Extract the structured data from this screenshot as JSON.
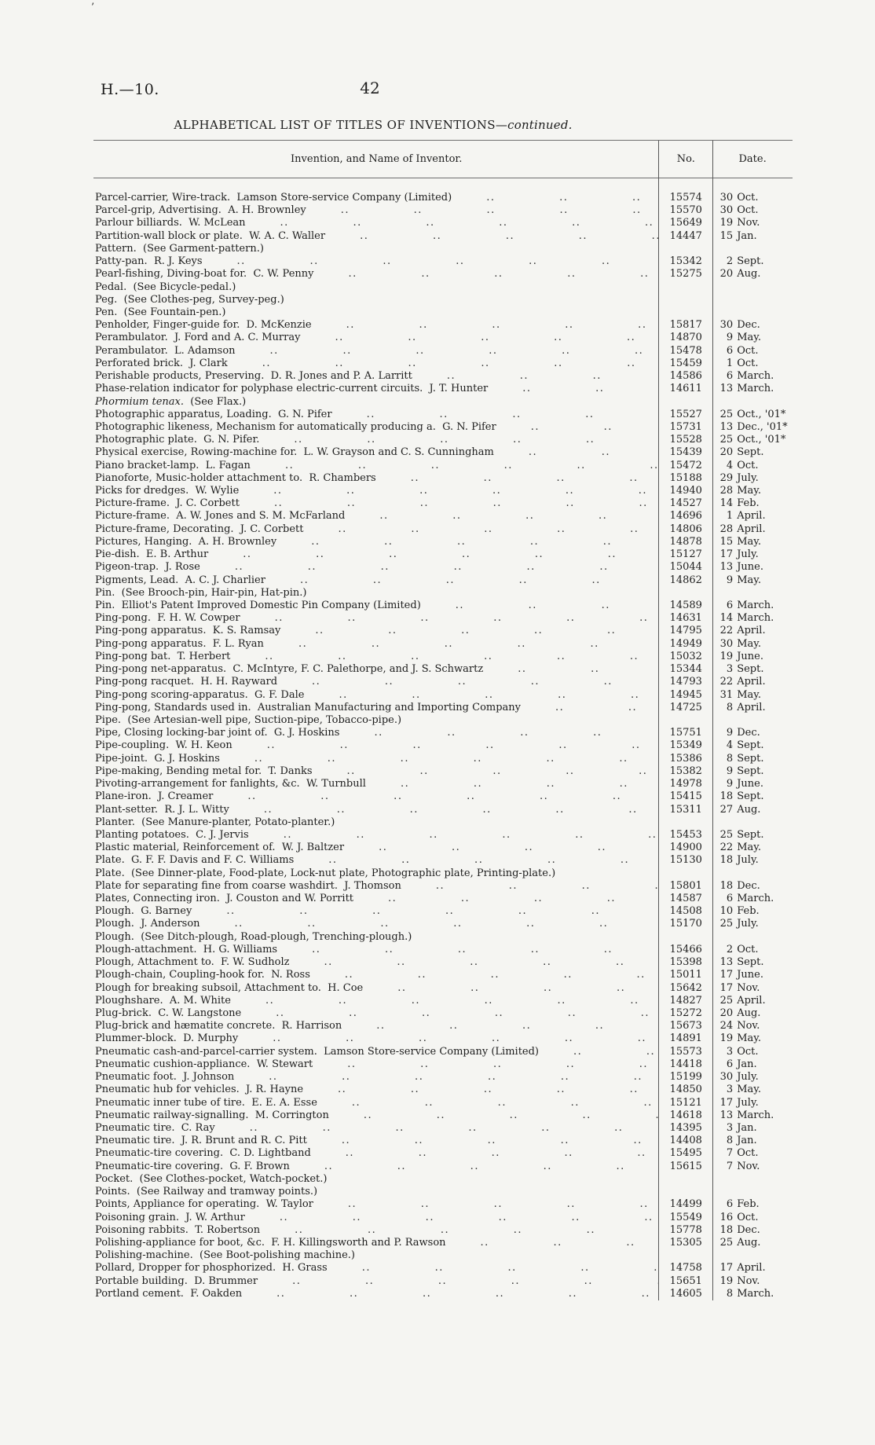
{
  "page": {
    "doc_ref": "H.—10.",
    "page_number": "42",
    "scan_mark": "’"
  },
  "title": {
    "main": "ALPHABETICAL LIST OF TITLES OF INVENTIONS",
    "suffix": "—continued."
  },
  "table": {
    "header": {
      "invention": "Invention, and Name of Inventor.",
      "no": "No.",
      "date": "Date."
    },
    "rows": [
      {
        "t": "Parcel-carrier, Wire-track.  Lamson Store-service Company (Limited)",
        "n": "15574",
        "d": "30 Oct."
      },
      {
        "t": "Parcel-grip, Advertising.  A. H. Brownley",
        "n": "15570",
        "d": "30 Oct."
      },
      {
        "t": "Parlour billiards.  W. McLean",
        "n": "15649",
        "d": "19 Nov."
      },
      {
        "t": "Partition-wall block or plate.  W. A. C. Waller",
        "n": "14447",
        "d": "15 Jan."
      },
      {
        "t": "Pattern.  (See Garment-pattern.)"
      },
      {
        "t": "Patty-pan.  R. J. Keys",
        "n": "15342",
        "d": "2 Sept."
      },
      {
        "t": "Pearl-fishing, Diving-boat for.  C. W. Penny",
        "n": "15275",
        "d": "20 Aug."
      },
      {
        "t": "Pedal.  (See Bicycle-pedal.)"
      },
      {
        "t": "Peg.  (See Clothes-peg, Survey-peg.)"
      },
      {
        "t": "Pen.  (See Fountain-pen.)"
      },
      {
        "t": "Penholder, Finger-guide for.  D. McKenzie",
        "n": "15817",
        "d": "30 Dec."
      },
      {
        "t": "Perambulator.  J. Ford and A. C. Murray",
        "n": "14870",
        "d": "9 May."
      },
      {
        "t": "Perambulator.  L. Adamson",
        "n": "15478",
        "d": "6 Oct."
      },
      {
        "t": "Perforated brick.  J. Clark",
        "n": "15459",
        "d": "1 Oct."
      },
      {
        "t": "Perishable products, Preserving.  D. R. Jones and P. A. Larritt",
        "n": "14586",
        "d": "6 March."
      },
      {
        "t": "Phase-relation indicator for polyphase electric-current circuits.  J. T. Hunter",
        "n": "14611",
        "d": "13 March."
      },
      {
        "i": "Phormium tenax.",
        "t": "  (See Flax.)"
      },
      {
        "t": "Photographic apparatus, Loading.  G. N. Pifer",
        "n": "15527",
        "d": "25 Oct., '01*"
      },
      {
        "t": "Photographic likeness, Mechanism for automatically producing a.  G. N. Pifer",
        "n": "15731",
        "d": "13 Dec., '01*"
      },
      {
        "t": "Photographic plate.  G. N. Pifer.",
        "n": "15528",
        "d": "25 Oct., '01*"
      },
      {
        "t": "Physical exercise, Rowing-machine for.  L. W. Grayson and C. S. Cunningham",
        "n": "15439",
        "d": "20 Sept."
      },
      {
        "t": "Piano bracket-lamp.  L. Fagan",
        "n": "15472",
        "d": "4 Oct."
      },
      {
        "t": "Pianoforte, Music-holder attachment to.  R. Chambers",
        "n": "15188",
        "d": "29 July."
      },
      {
        "t": "Picks for dredges.  W. Wylie",
        "n": "14940",
        "d": "28 May."
      },
      {
        "t": "Picture-frame.  J. C. Corbett",
        "n": "14527",
        "d": "14 Feb."
      },
      {
        "t": "Picture-frame.  A. W. Jones and S. M. McFarland",
        "n": "14696",
        "d": "1 April."
      },
      {
        "t": "Picture-frame, Decorating.  J. C. Corbett",
        "n": "14806",
        "d": "28 April."
      },
      {
        "t": "Pictures, Hanging.  A. H. Brownley",
        "n": "14878",
        "d": "15 May."
      },
      {
        "t": "Pie-dish.  E. B. Arthur",
        "n": "15127",
        "d": "17 July."
      },
      {
        "t": "Pigeon-trap.  J. Rose",
        "n": "15044",
        "d": "13 June."
      },
      {
        "t": "Pigments, Lead.  A. C. J. Charlier",
        "n": "14862",
        "d": "9 May."
      },
      {
        "t": "Pin.  (See Brooch-pin, Hair-pin, Hat-pin.)"
      },
      {
        "t": "Pin.  Elliot's Patent Improved Domestic Pin Company (Limited)",
        "n": "14589",
        "d": "6 March."
      },
      {
        "t": "Ping-pong.  F. H. W. Cowper",
        "n": "14631",
        "d": "14 March."
      },
      {
        "t": "Ping-pong apparatus.  K. S. Ramsay",
        "n": "14795",
        "d": "22 April."
      },
      {
        "t": "Ping-pong apparatus.  F. L. Ryan",
        "n": "14949",
        "d": "30 May."
      },
      {
        "t": "Ping-pong bat.  T. Herbert",
        "n": "15032",
        "d": "19 June."
      },
      {
        "t": "Ping-pong net-apparatus.  C. McIntyre, F. C. Palethorpe, and J. S. Schwartz",
        "n": "15344",
        "d": "3 Sept."
      },
      {
        "t": "Ping-pong racquet.  H. H. Rayward",
        "n": "14793",
        "d": "22 April."
      },
      {
        "t": "Ping-pong scoring-apparatus.  G. F. Dale",
        "n": "14945",
        "d": "31 May."
      },
      {
        "t": "Ping-pong, Standards used in.  Australian Manufacturing and Importing Company",
        "n": "14725",
        "d": "8 April."
      },
      {
        "t": "Pipe.  (See Artesian-well pipe, Suction-pipe, Tobacco-pipe.)"
      },
      {
        "t": "Pipe, Closing locking-bar joint of.  G. J. Hoskins",
        "n": "15751",
        "d": "9 Dec."
      },
      {
        "t": "Pipe-coupling.  W. H. Keon",
        "n": "15349",
        "d": "4 Sept."
      },
      {
        "t": "Pipe-joint.  G. J. Hoskins",
        "n": "15386",
        "d": "8 Sept."
      },
      {
        "t": "Pipe-making, Bending metal for.  T. Danks",
        "n": "15382",
        "d": "9 Sept."
      },
      {
        "t": "Pivoting-arrangement for fanlights, &c.  W. Turnbull",
        "n": "14978",
        "d": "9 June."
      },
      {
        "t": "Plane-iron.  J. Creamer",
        "n": "15415",
        "d": "18 Sept."
      },
      {
        "t": "Plant-setter.  R. J. L. Witty",
        "n": "15311",
        "d": "27 Aug."
      },
      {
        "t": "Planter.  (See Manure-planter, Potato-planter.)"
      },
      {
        "t": "Planting potatoes.  C. J. Jervis",
        "n": "15453",
        "d": "25 Sept."
      },
      {
        "t": "Plastic material, Reinforcement of.  W. J. Baltzer",
        "n": "14900",
        "d": "22 May."
      },
      {
        "t": "Plate.  G. F. F. Davis and F. C. Williams",
        "n": "15130",
        "d": "18 July."
      },
      {
        "t": "Plate.  (See Dinner-plate, Food-plate, Lock-nut plate, Photographic plate, Printing-plate.)"
      },
      {
        "t": "Plate for separating fine from coarse washdirt.  J. Thomson",
        "n": "15801",
        "d": "18 Dec."
      },
      {
        "t": "Plates, Connecting iron.  J. Couston and W. Porritt",
        "n": "14587",
        "d": "6 March."
      },
      {
        "t": "Plough.  G. Barney",
        "n": "14508",
        "d": "10 Feb."
      },
      {
        "t": "Plough.  J. Anderson",
        "n": "15170",
        "d": "25 July."
      },
      {
        "t": "Plough.  (See Ditch-plough, Road-plough, Trenching-plough.)"
      },
      {
        "t": "Plough-attachment.  H. G. Williams",
        "n": "15466",
        "d": "2 Oct."
      },
      {
        "t": "Plough, Attachment to.  F. W. Sudholz",
        "n": "15398",
        "d": "13 Sept."
      },
      {
        "t": "Plough-chain, Coupling-hook for.  N. Ross",
        "n": "15011",
        "d": "17 June."
      },
      {
        "t": "Plough for breaking subsoil, Attachment to.  H. Coe",
        "n": "15642",
        "d": "17 Nov."
      },
      {
        "t": "Ploughshare.  A. M. White",
        "n": "14827",
        "d": "25 April."
      },
      {
        "t": "Plug-brick.  C. W. Langstone",
        "n": "15272",
        "d": "20 Aug."
      },
      {
        "t": "Plug-brick and hæmatite concrete.  R. Harrison",
        "n": "15673",
        "d": "24 Nov."
      },
      {
        "t": "Plummer-block.  D. Murphy",
        "n": "14891",
        "d": "19 May."
      },
      {
        "t": "Pneumatic cash-and-parcel-carrier system.  Lamson Store-service Company (Limited)",
        "n": "15573",
        "d": "3 Oct."
      },
      {
        "t": "Pneumatic cushion-appliance.  W. Stewart",
        "n": "14418",
        "d": "6 Jan."
      },
      {
        "t": "Pneumatic foot.  J. Johnson",
        "n": "15199",
        "d": "30 July."
      },
      {
        "t": "Pneumatic hub for vehicles.  J. R. Hayne",
        "n": "14850",
        "d": "3 May."
      },
      {
        "t": "Pneumatic inner tube of tire.  E. E. A. Esse",
        "n": "15121",
        "d": "17 July."
      },
      {
        "t": "Pneumatic railway-signalling.  M. Corrington",
        "n": "14618",
        "d": "13 March."
      },
      {
        "t": "Pneumatic tire.  C. Ray",
        "n": "14395",
        "d": "3 Jan."
      },
      {
        "t": "Pneumatic tire.  J. R. Brunt and R. C. Pitt",
        "n": "14408",
        "d": "8 Jan."
      },
      {
        "t": "Pneumatic-tire covering.  C. D. Lightband",
        "n": "15495",
        "d": "7 Oct."
      },
      {
        "t": "Pneumatic-tire covering.  G. F. Brown",
        "n": "15615",
        "d": "7 Nov."
      },
      {
        "t": "Pocket.  (See Clothes-pocket, Watch-pocket.)"
      },
      {
        "t": "Points.  (See Railway and tramway points.)"
      },
      {
        "t": "Points, Appliance for operating.  W. Taylor",
        "n": "14499",
        "d": "6 Feb."
      },
      {
        "t": "Poisoning grain.  J. W. Arthur",
        "n": "15549",
        "d": "16 Oct."
      },
      {
        "t": "Poisoning rabbits.  T. Robertson",
        "n": "15778",
        "d": "18 Dec."
      },
      {
        "t": "Polishing-appliance for boot, &c.  F. H. Killingsworth and P. Rawson",
        "n": "15305",
        "d": "25 Aug."
      },
      {
        "t": "Polishing-machine.  (See Boot-polishing machine.)"
      },
      {
        "t": "Pollard, Dropper for phosphorized.  H. Grass",
        "n": "14758",
        "d": "17 April."
      },
      {
        "t": "Portable building.  D. Brummer",
        "n": "15651",
        "d": "19 Nov."
      },
      {
        "t": "Portland cement.  F. Oakden",
        "n": "14605",
        "d": "8 March."
      }
    ]
  }
}
